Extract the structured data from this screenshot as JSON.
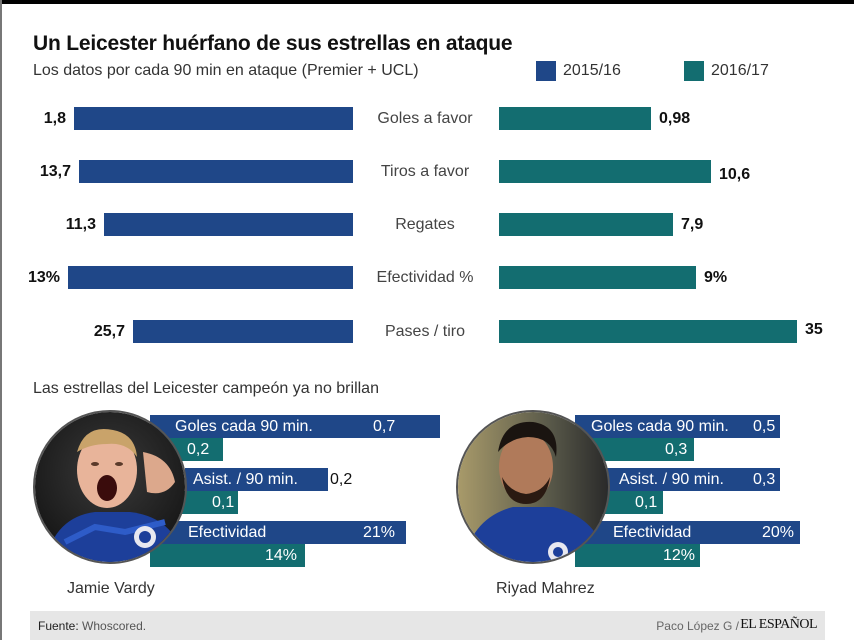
{
  "title": "Un Leicester huérfano de sus estrellas en ataque",
  "subtitle": "Los datos por cada 90 min en ataque (Premier + UCL)",
  "legend": [
    {
      "label": "2015/16",
      "color": "#1f4788"
    },
    {
      "label": "2016/17",
      "color": "#136d70"
    }
  ],
  "chart_data": [
    {
      "type": "bar",
      "title": "Un Leicester huérfano de sus estrellas en ataque",
      "subtitle": "Los datos por cada 90 min en ataque (Premier + UCL)",
      "orientation": "horizontal-butterfly",
      "categories": [
        "Goles a favor",
        "Tiros a favor",
        "Regates",
        "Efectividad %",
        "Pases / tiro"
      ],
      "series": [
        {
          "name": "2015/16",
          "color": "#1f4788",
          "values": [
            1.8,
            13.7,
            11.3,
            13,
            25.7
          ],
          "labels": [
            "1,8",
            "13,7",
            "11,3",
            "13%",
            "25,7"
          ]
        },
        {
          "name": "2016/17",
          "color": "#136d70",
          "values": [
            0.98,
            10.6,
            7.9,
            9,
            35
          ],
          "labels": [
            "0,98",
            "10,6",
            "7,9",
            "9%",
            "35"
          ]
        }
      ],
      "legend": "top-right",
      "grid": false
    },
    {
      "type": "bar",
      "title": "Las estrellas del Leicester campeón ya no brillan",
      "players": [
        {
          "name": "Jamie Vardy",
          "metrics": [
            {
              "label": "Goles cada 90 min.",
              "v2015": 0.7,
              "v2016": 0.2,
              "l2015": "0,7",
              "l2016": "0,2"
            },
            {
              "label": "Asist. / 90 min.",
              "v2015": 0.2,
              "v2016": 0.1,
              "l2015": "0,2",
              "l2016": "0,1"
            },
            {
              "label": "Efectividad",
              "v2015": 21,
              "v2016": 14,
              "l2015": "21%",
              "l2016": "14%"
            }
          ]
        },
        {
          "name": "Riyad Mahrez",
          "metrics": [
            {
              "label": "Goles cada 90 min.",
              "v2015": 0.5,
              "v2016": 0.3,
              "l2015": "0,5",
              "l2016": "0,3"
            },
            {
              "label": "Asist. / 90 min.",
              "v2015": 0.3,
              "v2016": 0.1,
              "l2015": "0,3",
              "l2016": "0,1"
            },
            {
              "label": "Efectividad",
              "v2015": 20,
              "v2016": 12,
              "l2015": "20%",
              "l2016": "12%"
            }
          ]
        }
      ]
    }
  ],
  "section2_title": "Las estrellas del Leicester campeón ya no brillan",
  "footer": {
    "source_label": "Fuente:",
    "source_value": "Whoscored.",
    "author": "Paco López G /",
    "brand": "EL ESPAÑOL"
  }
}
